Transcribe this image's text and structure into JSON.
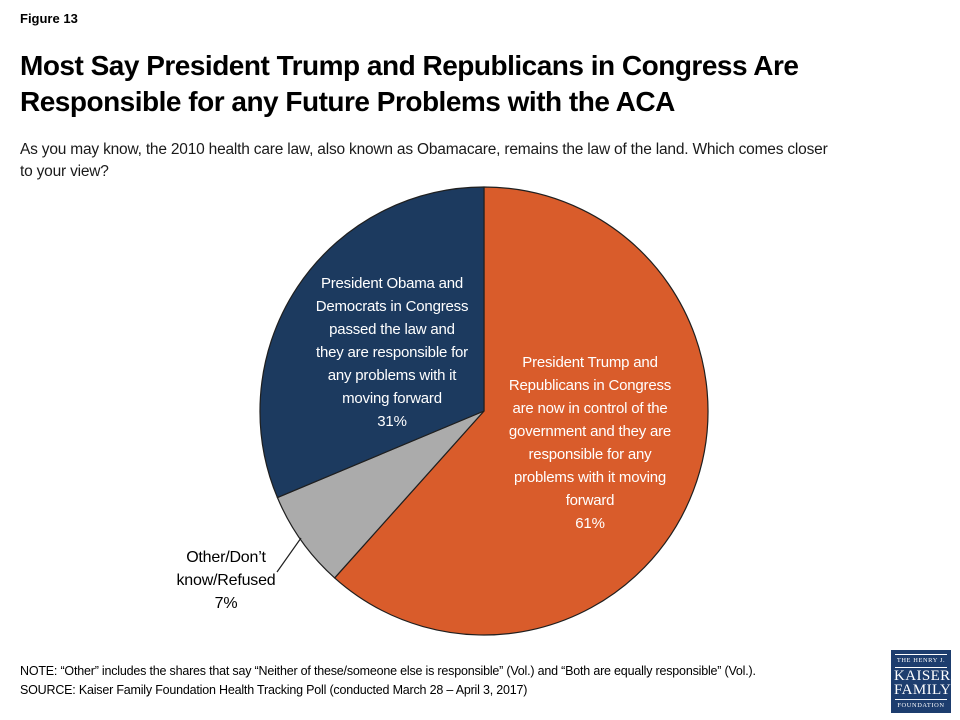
{
  "figure_label": "Figure 13",
  "title": "Most Say President Trump and Republicans in Congress Are\nResponsible for any Future Problems with the ACA",
  "subtitle": "As you may know, the 2010 health care law, also known as Obamacare, remains the law of the land. Which comes closer\nto your view?",
  "chart_data": {
    "type": "pie",
    "title": "Most Say President Trump and Republicans in Congress Are Responsible for any Future Problems with the ACA",
    "question": "As you may know, the 2010 health care law, also known as Obamacare, remains the law of the land. Which comes closer to your view?",
    "units": "percent",
    "start_angle": "12 o'clock",
    "direction": "clockwise",
    "outline_color": "#1F1F1F",
    "slices": [
      {
        "id": "trump",
        "label": "President Trump and Republicans in Congress are now in control of the government and they are responsible for any problems with it moving forward",
        "value": 61,
        "color": "#D95C2B",
        "text_color": "#FFFFFF"
      },
      {
        "id": "other",
        "label": "Other/Don’t know/Refused",
        "value": 7,
        "color": "#ABABAB",
        "text_color": "#000000"
      },
      {
        "id": "obama",
        "label": "President Obama and Democrats in Congress passed the law and they are responsible for any problems with it moving forward",
        "value": 31,
        "color": "#1C3A5F",
        "text_color": "#FFFFFF"
      }
    ]
  },
  "pie_labels": {
    "trump": "President Trump and\nRepublicans in Congress\nare now in control of the\ngovernment and they are\nresponsible for any\nproblems with it moving\nforward\n61%",
    "obama": "President Obama and\nDemocrats in Congress\npassed the law and\nthey are responsible for\nany problems with it\nmoving forward\n31%",
    "other": "Other/Don’t\nknow/Refused\n7%"
  },
  "note": "NOTE: “Other” includes the shares that say “Neither of these/someone else is responsible” (Vol.) and “Both are equally responsible” (Vol.).\nSOURCE: Kaiser Family Foundation Health Tracking Poll (conducted March 28 – April 3, 2017)",
  "logo": {
    "line1": "THE HENRY J.",
    "line2": "KAISER",
    "line3": "FAMILY",
    "line4": "FOUNDATION"
  }
}
